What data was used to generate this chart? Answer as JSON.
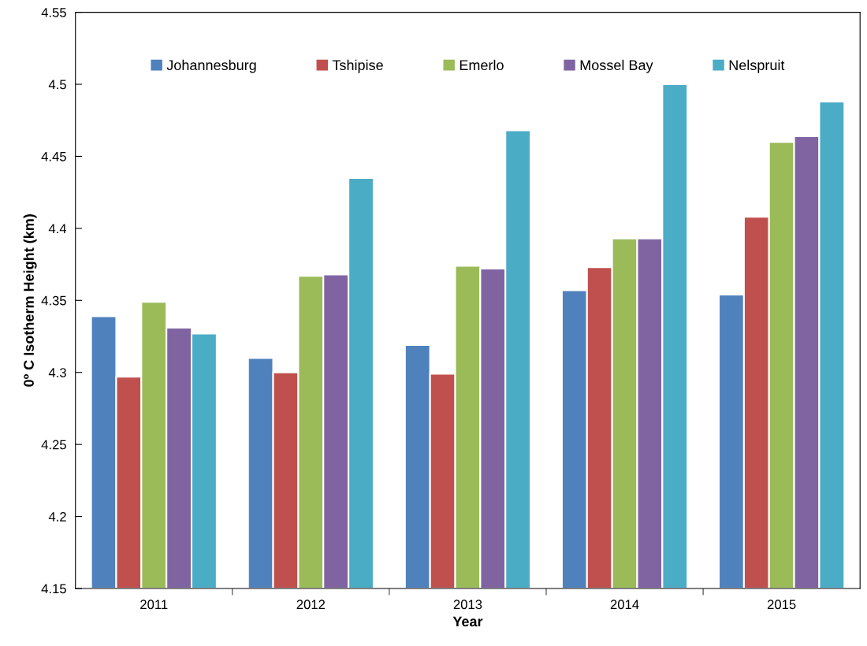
{
  "chart_data": {
    "type": "bar",
    "xlabel": "Year",
    "ylabel": "0º C Isotherm Height (km)",
    "categories": [
      "2011",
      "2012",
      "2013",
      "2014",
      "2015"
    ],
    "series": [
      {
        "name": "Johannesburg",
        "color": "#4f81bd",
        "values": [
          4.339,
          4.31,
          4.319,
          4.357,
          4.354
        ]
      },
      {
        "name": "Tshipise",
        "color": "#c0504d",
        "values": [
          4.297,
          4.3,
          4.299,
          4.373,
          4.408
        ]
      },
      {
        "name": "Emerlo",
        "color": "#9bbb59",
        "values": [
          4.349,
          4.367,
          4.374,
          4.393,
          4.46
        ]
      },
      {
        "name": "Mossel Bay",
        "color": "#8064a2",
        "values": [
          4.331,
          4.368,
          4.372,
          4.393,
          4.464
        ]
      },
      {
        "name": "Nelspruit",
        "color": "#4bacc6",
        "values": [
          4.327,
          4.435,
          4.468,
          4.5,
          4.488
        ]
      }
    ],
    "ylim": [
      4.15,
      4.55
    ],
    "yticks": [
      4.15,
      4.2,
      4.25,
      4.3,
      4.35,
      4.4,
      4.45,
      4.5,
      4.55
    ],
    "grid": false,
    "legend": "top"
  }
}
